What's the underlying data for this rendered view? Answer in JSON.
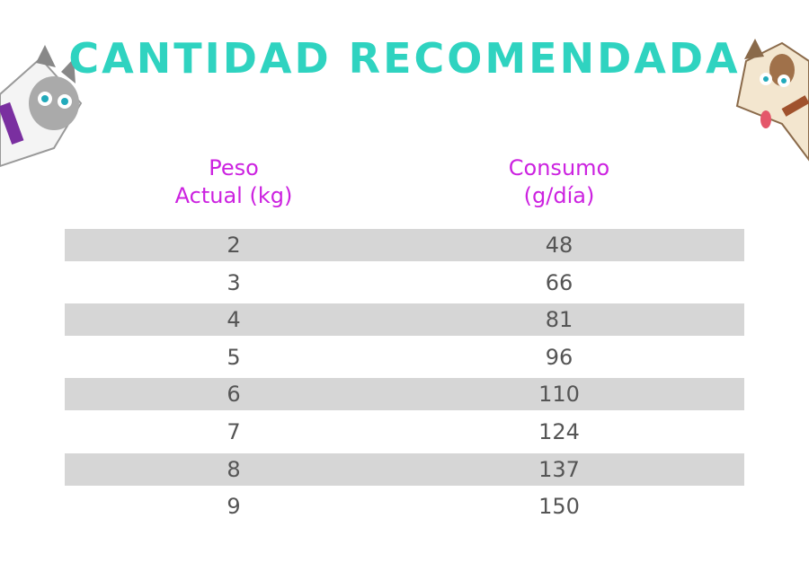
{
  "header": {
    "title": "CANTIDAD RECOMENDADA"
  },
  "table": {
    "columns": [
      [
        "Peso",
        "Actual (kg)"
      ],
      [
        "Consumo",
        "(g/día)"
      ]
    ],
    "rows": [
      [
        2,
        48
      ],
      [
        3,
        66
      ],
      [
        4,
        81
      ],
      [
        5,
        96
      ],
      [
        6,
        110
      ],
      [
        7,
        124
      ],
      [
        8,
        137
      ],
      [
        9,
        150
      ]
    ]
  }
}
